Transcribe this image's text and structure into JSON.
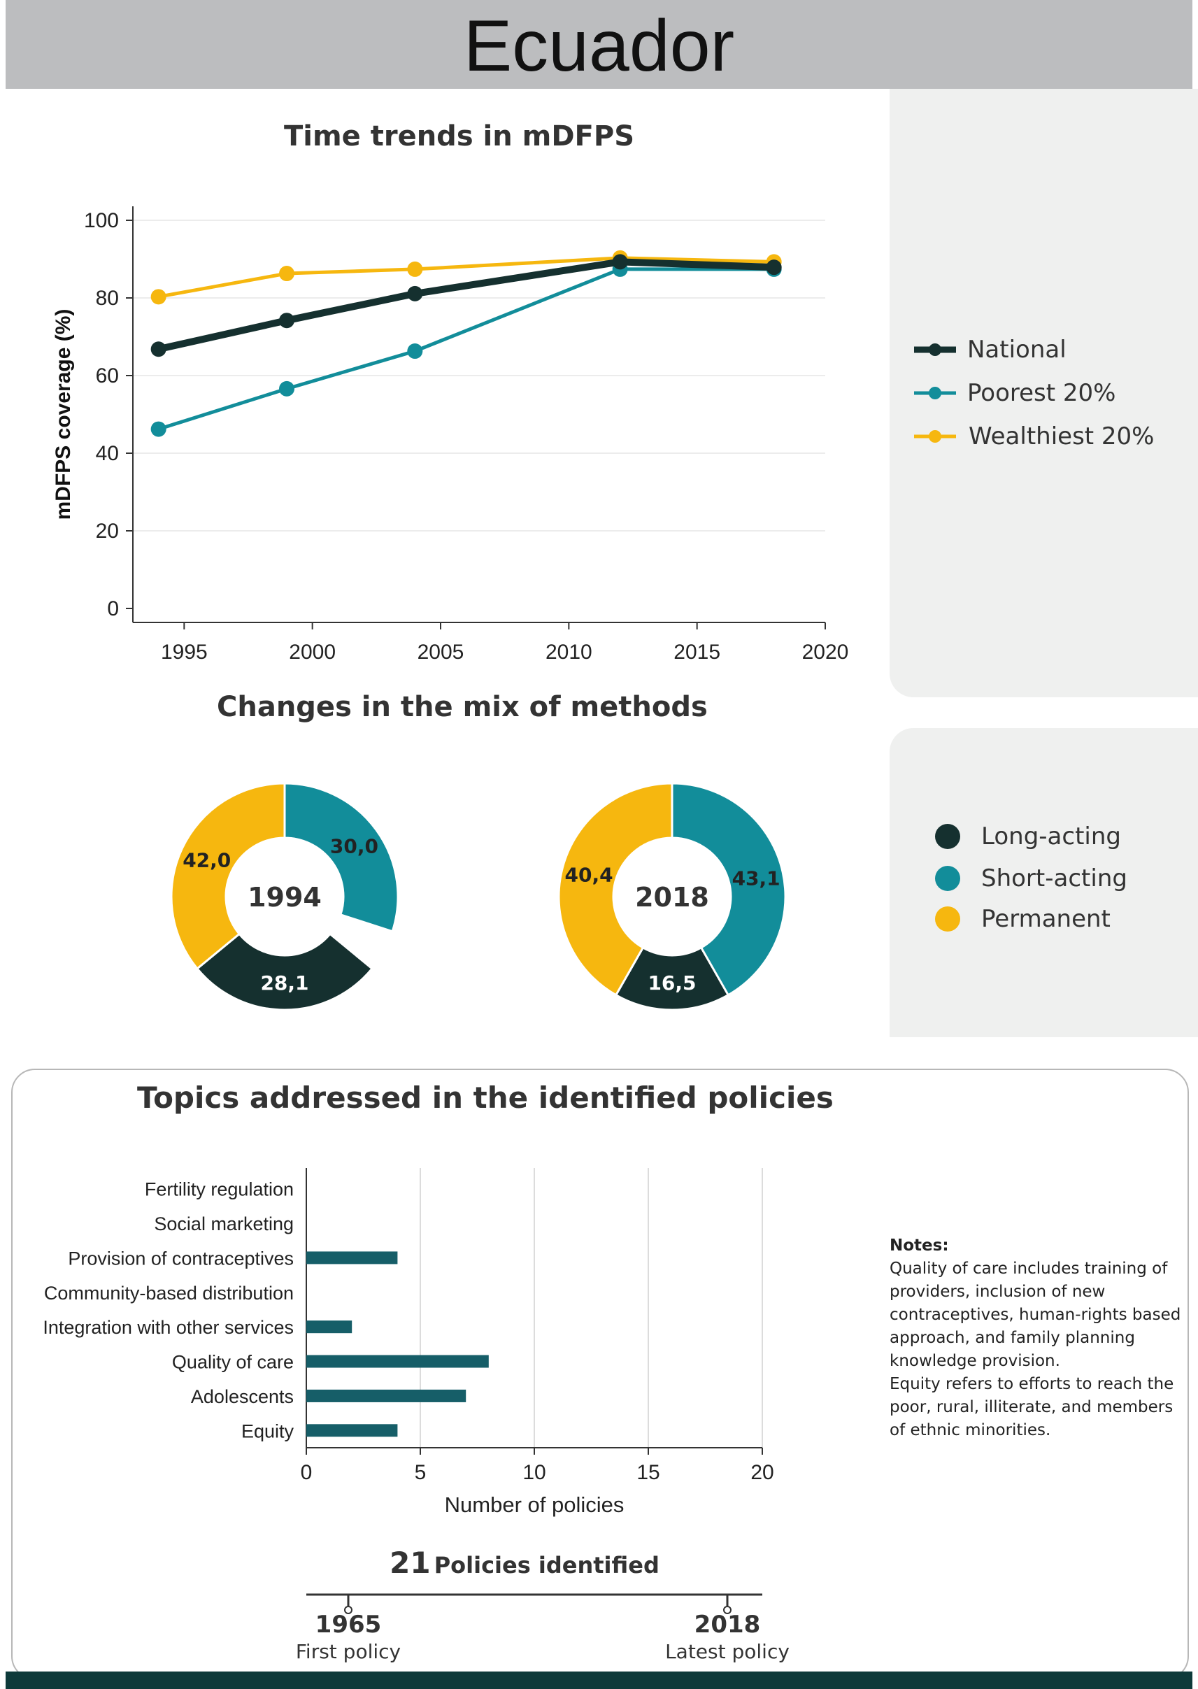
{
  "header": {
    "title": "Ecuador"
  },
  "colors": {
    "national": "#15302f",
    "poorest": "#128d9a",
    "wealthiest": "#f6b70f",
    "long": "#15302f",
    "short": "#128d9a",
    "permanent": "#f6b70f",
    "bar": "#165e68",
    "grid": "#e6e6e6"
  },
  "chart_data": [
    {
      "type": "line",
      "title": "Time trends in mDFPS",
      "xlabel": "",
      "ylabel": "mDFPS coverage (%)",
      "xlim": [
        1993,
        2020
      ],
      "ylim": [
        0,
        100
      ],
      "xticks": [
        "1995",
        "2000",
        "2005",
        "2010",
        "2015",
        "2020"
      ],
      "yticks": [
        "0",
        "20",
        "40",
        "60",
        "80",
        "100"
      ],
      "x": [
        1994,
        1999,
        2004,
        2012,
        2018
      ],
      "series": [
        {
          "key": "national",
          "name": "National",
          "values": [
            66.8,
            74.2,
            81.1,
            89.3,
            87.9
          ]
        },
        {
          "key": "poorest",
          "name": "Poorest 20%",
          "values": [
            46.2,
            56.6,
            66.3,
            87.4,
            87.4
          ]
        },
        {
          "key": "wealthiest",
          "name": "Wealthiest 20%",
          "values": [
            80.3,
            86.3,
            87.4,
            90.3,
            89.3
          ]
        }
      ],
      "legend": [
        "National",
        "Poorest 20%",
        "Wealthiest 20%"
      ]
    },
    {
      "type": "pie",
      "title": "Changes in the mix of methods",
      "categories": [
        "Long-acting",
        "Short-acting",
        "Permanent"
      ],
      "legend": [
        "Long-acting",
        "Short-acting",
        "Permanent"
      ],
      "donuts": [
        {
          "year": "1994",
          "values": [
            28.1,
            30.0,
            42.0
          ],
          "labels": [
            "28,1",
            "30,0",
            "42,0"
          ]
        },
        {
          "year": "2018",
          "values": [
            16.5,
            43.1,
            40.4
          ],
          "labels": [
            "16,5",
            "43,1",
            "40,4"
          ]
        }
      ]
    },
    {
      "type": "bar",
      "orientation": "horizontal",
      "title": "Topics addressed in the identified policies",
      "xlabel": "Number of policies",
      "xlim": [
        0,
        20
      ],
      "xticks": [
        "0",
        "5",
        "10",
        "15",
        "20"
      ],
      "categories": [
        "Fertility regulation",
        "Social marketing",
        "Provision of contraceptives",
        "Community-based distribution",
        "Integration with other services",
        "Quality of care",
        "Adolescents",
        "Equity"
      ],
      "values": [
        0,
        0,
        4,
        0,
        2,
        8,
        7,
        4
      ]
    }
  ],
  "notes": {
    "heading": "Notes:",
    "lines": [
      "Quality of care includes training of",
      "providers, inclusion of new",
      "contraceptives, human-rights based",
      "approach, and family planning",
      "knowledge provision.",
      "Equity refers to efforts to reach the",
      "poor, rural, illiterate, and members",
      "of ethnic minorities."
    ]
  },
  "policies": {
    "count": "21",
    "label": "Policies identified",
    "first_year": "1965",
    "first_label": "First policy",
    "latest_year": "2018",
    "latest_label": "Latest policy"
  }
}
